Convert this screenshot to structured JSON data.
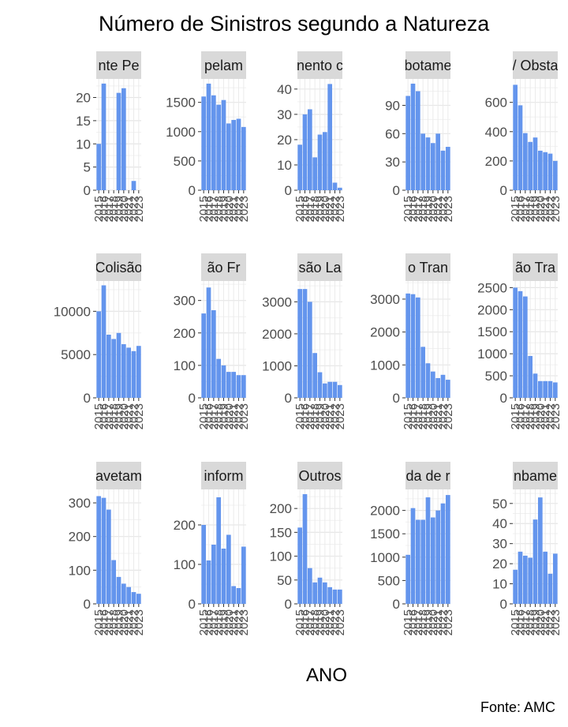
{
  "chart_data": {
    "type": "bar",
    "title": "Número de Sinistros segundo a Natureza",
    "xlabel": "ANO",
    "caption": "Fonte: AMC",
    "bar_color": "#6495ED",
    "strip_color": "#D9D9D9",
    "grid": true,
    "facet_layout": "3 rows x 5 columns",
    "x_tick_labels": [
      "2015",
      "2016",
      "2017",
      "2018",
      "2019",
      "2020",
      "2021",
      "2022",
      "2023"
    ],
    "panels": [
      {
        "label": "nte Pe",
        "ylim": [
          0,
          24
        ],
        "yticks": [
          0,
          5,
          10,
          15,
          20
        ],
        "values": [
          10,
          23,
          0,
          0,
          21,
          22,
          0,
          2,
          0
        ]
      },
      {
        "label": "pelam",
        "ylim": [
          0,
          1900
        ],
        "yticks": [
          0,
          500,
          1000,
          1500
        ],
        "values": [
          1600,
          1820,
          1620,
          1460,
          1540,
          1140,
          1200,
          1220,
          1080
        ]
      },
      {
        "label": "nento c",
        "ylim": [
          0,
          44
        ],
        "yticks": [
          0,
          10,
          20,
          30,
          40
        ],
        "values": [
          18,
          30,
          32,
          13,
          22,
          23,
          42,
          3,
          1
        ]
      },
      {
        "label": "botame",
        "ylim": [
          0,
          118
        ],
        "yticks": [
          0,
          30,
          60,
          90
        ],
        "values": [
          100,
          113,
          105,
          60,
          56,
          50,
          60,
          42,
          46
        ]
      },
      {
        "label": "/ Obsta",
        "ylim": [
          0,
          760
        ],
        "yticks": [
          0,
          200,
          400,
          600
        ],
        "values": [
          720,
          580,
          390,
          330,
          360,
          270,
          260,
          250,
          200
        ]
      },
      {
        "label": "Colisão",
        "ylim": [
          0,
          13500
        ],
        "yticks": [
          0,
          5000,
          10000
        ],
        "values": [
          10000,
          13000,
          7300,
          6800,
          7500,
          6200,
          5800,
          5400,
          6000
        ]
      },
      {
        "label": "ão Fr",
        "ylim": [
          0,
          360
        ],
        "yticks": [
          0,
          100,
          200,
          300
        ],
        "values": [
          260,
          340,
          270,
          120,
          100,
          80,
          80,
          70,
          70
        ]
      },
      {
        "label": "são La",
        "ylim": [
          0,
          3650
        ],
        "yticks": [
          0,
          1000,
          2000,
          3000
        ],
        "values": [
          3400,
          3400,
          3000,
          1400,
          800,
          450,
          500,
          500,
          400
        ]
      },
      {
        "label": "o Tran",
        "ylim": [
          0,
          3550
        ],
        "yticks": [
          0,
          1000,
          2000,
          3000
        ],
        "values": [
          3170,
          3150,
          3050,
          1550,
          1050,
          800,
          600,
          700,
          550
        ]
      },
      {
        "label": "ão Tra",
        "ylim": [
          0,
          2650
        ],
        "yticks": [
          0,
          500,
          1000,
          1500,
          2000,
          2500
        ],
        "values": [
          2500,
          2420,
          2300,
          950,
          550,
          380,
          380,
          380,
          350
        ]
      },
      {
        "label": "avetam",
        "ylim": [
          0,
          340
        ],
        "yticks": [
          0,
          100,
          200,
          300
        ],
        "values": [
          320,
          315,
          280,
          130,
          80,
          60,
          50,
          35,
          30
        ]
      },
      {
        "label": "inform",
        "ylim": [
          0,
          290
        ],
        "yticks": [
          0,
          100,
          200
        ],
        "values": [
          200,
          110,
          150,
          270,
          140,
          175,
          45,
          40,
          145
        ]
      },
      {
        "label": "Outros",
        "ylim": [
          0,
          240
        ],
        "yticks": [
          0,
          50,
          100,
          150,
          200
        ],
        "values": [
          160,
          230,
          75,
          45,
          55,
          45,
          35,
          30,
          30
        ]
      },
      {
        "label": "da de r",
        "ylim": [
          0,
          2450
        ],
        "yticks": [
          0,
          500,
          1000,
          1500,
          2000
        ],
        "values": [
          1050,
          2050,
          1800,
          1800,
          2280,
          1850,
          2000,
          2150,
          2330
        ]
      },
      {
        "label": "nbame",
        "ylim": [
          0,
          57
        ],
        "yticks": [
          0,
          10,
          20,
          30,
          40,
          50
        ],
        "values": [
          17,
          26,
          24,
          23,
          42,
          53,
          26,
          15,
          25
        ]
      }
    ]
  }
}
